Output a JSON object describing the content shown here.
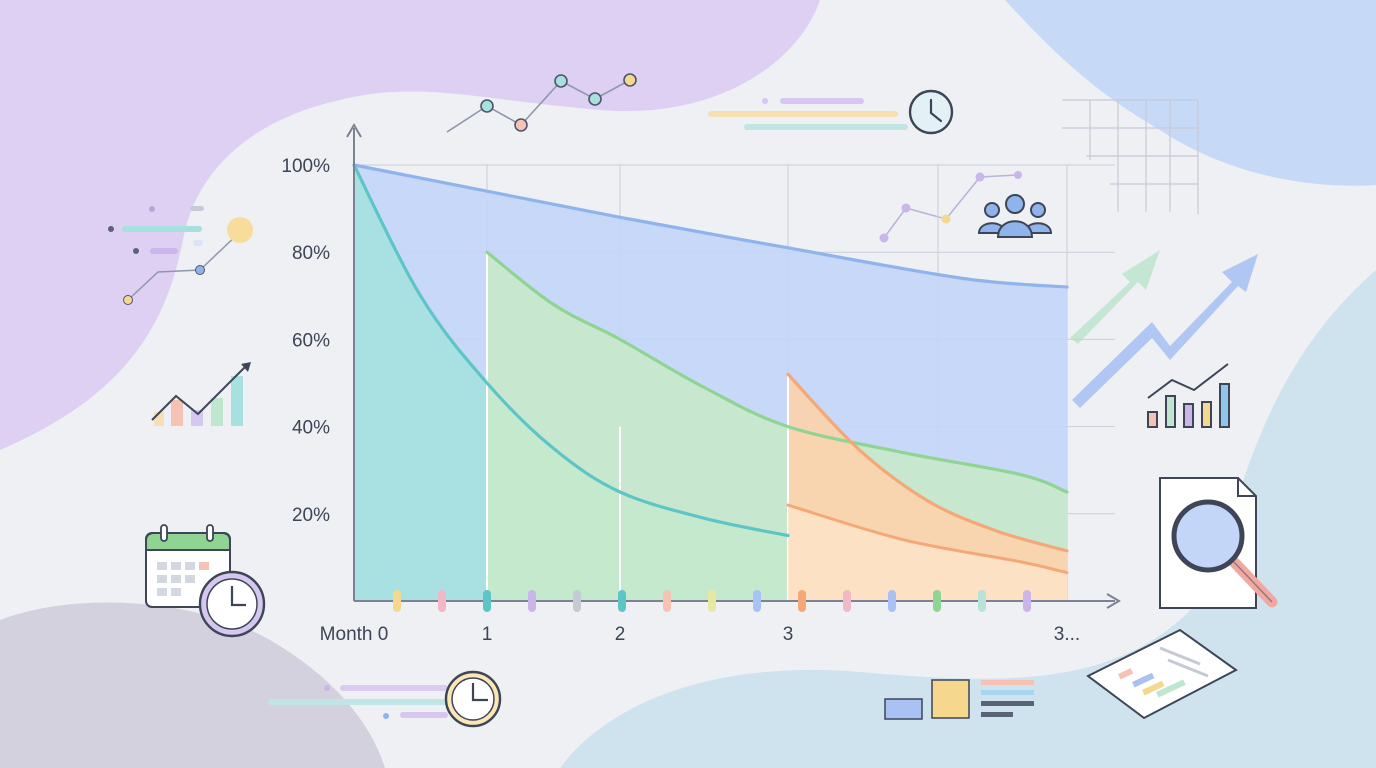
{
  "chart_data": {
    "type": "area",
    "title": "",
    "xlabel": "",
    "ylabel": "",
    "x_tick_labels": [
      "Month 0",
      "1",
      "2",
      "3",
      "3..."
    ],
    "y_tick_labels": [
      "20%",
      "40%",
      "60%",
      "80%",
      "100%"
    ],
    "y_ticks": [
      20,
      40,
      60,
      80,
      100
    ],
    "ylim": [
      0,
      100
    ],
    "grid": true,
    "cohorts": [
      {
        "start": 0,
        "color": "#8fb4ec",
        "fill": "#c3d6f7",
        "x": [
          0,
          1,
          2,
          3,
          3.75,
          4.2
        ],
        "values": [
          100,
          94,
          88,
          81,
          74,
          72
        ]
      },
      {
        "start": 0,
        "color": "#5ec5c7",
        "fill": "#a6e1df",
        "x": [
          0,
          0.5,
          1,
          1.5,
          2,
          2.5,
          3
        ],
        "values": [
          100,
          70,
          50,
          35,
          25,
          19,
          15
        ]
      },
      {
        "start": 1,
        "color": "#8fd493",
        "fill": "#c7e9cb",
        "x": [
          1,
          1.5,
          2,
          2.5,
          3,
          3.5,
          4,
          4.2
        ],
        "values": [
          80,
          68,
          60,
          49,
          40,
          34,
          29,
          25
        ]
      },
      {
        "start": 3,
        "color": "#f4a877",
        "fill": "#fcd3ac",
        "x": [
          3,
          3.3,
          3.6,
          3.9,
          4.2
        ],
        "values": [
          52,
          35,
          23,
          16,
          11.5
        ]
      }
    ],
    "lower_envelope": {
      "x": [
        3,
        3.5,
        4,
        4.2
      ],
      "values": [
        22,
        14,
        9,
        6.5
      ],
      "color": "#f4a877"
    }
  },
  "decor": {
    "tick_colors": [
      "#f6d78e",
      "#f2b8c6",
      "#5ec5c7",
      "#cbb6ec",
      "#c5cad6",
      "#5ec5c7",
      "#f5c2b4",
      "#e8e9a1",
      "#a9c2f3",
      "#f4a877",
      "#f2b8c6",
      "#a9c2f3",
      "#8fd493",
      "#b7e3d9",
      "#cbb6ec"
    ],
    "icons": [
      "line-chart-icon",
      "clock-icon",
      "users-icon",
      "bar-chart-icon",
      "calendar-icon",
      "trend-arrow-icon",
      "magnifier-document-icon",
      "report-sheet-icon",
      "grid-icon",
      "legend-swatch-icon"
    ]
  }
}
